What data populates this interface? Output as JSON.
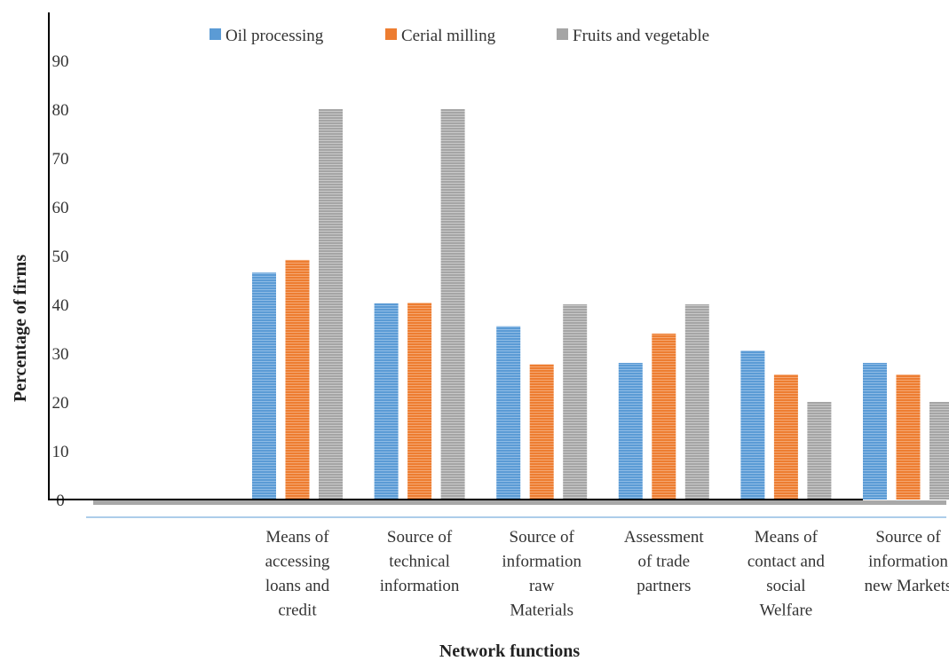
{
  "chart_data": {
    "type": "bar",
    "title": "",
    "xlabel": "Network functions",
    "ylabel": "Percentage of firms",
    "ylim": [
      0,
      90
    ],
    "yticks": [
      0,
      10,
      20,
      30,
      40,
      50,
      60,
      70,
      80,
      90
    ],
    "grid": false,
    "legend_position": "top",
    "categories": [
      [
        "Means of",
        "accessing",
        "loans and",
        "credit"
      ],
      [
        "Source of",
        "technical",
        "information"
      ],
      [
        "Source of",
        "information",
        "raw",
        "Materials"
      ],
      [
        "Assessment",
        "of trade",
        "partners"
      ],
      [
        "Means of",
        "contact and",
        "social",
        "Welfare"
      ],
      [
        "Source of",
        "information",
        "new Markets"
      ]
    ],
    "series": [
      {
        "name": "Oil processing",
        "color": "#5B9BD5",
        "values": [
          46.5,
          40.2,
          35.5,
          28.0,
          30.5,
          28.0
        ]
      },
      {
        "name": "Cerial milling",
        "color": "#ED7D31",
        "values": [
          49.1,
          40.3,
          27.7,
          34.0,
          25.6,
          25.6
        ]
      },
      {
        "name": "Fruits and vegetable",
        "color": "#A5A5A5",
        "values": [
          80.0,
          80.0,
          40.0,
          40.0,
          20.0,
          20.0
        ]
      }
    ]
  }
}
